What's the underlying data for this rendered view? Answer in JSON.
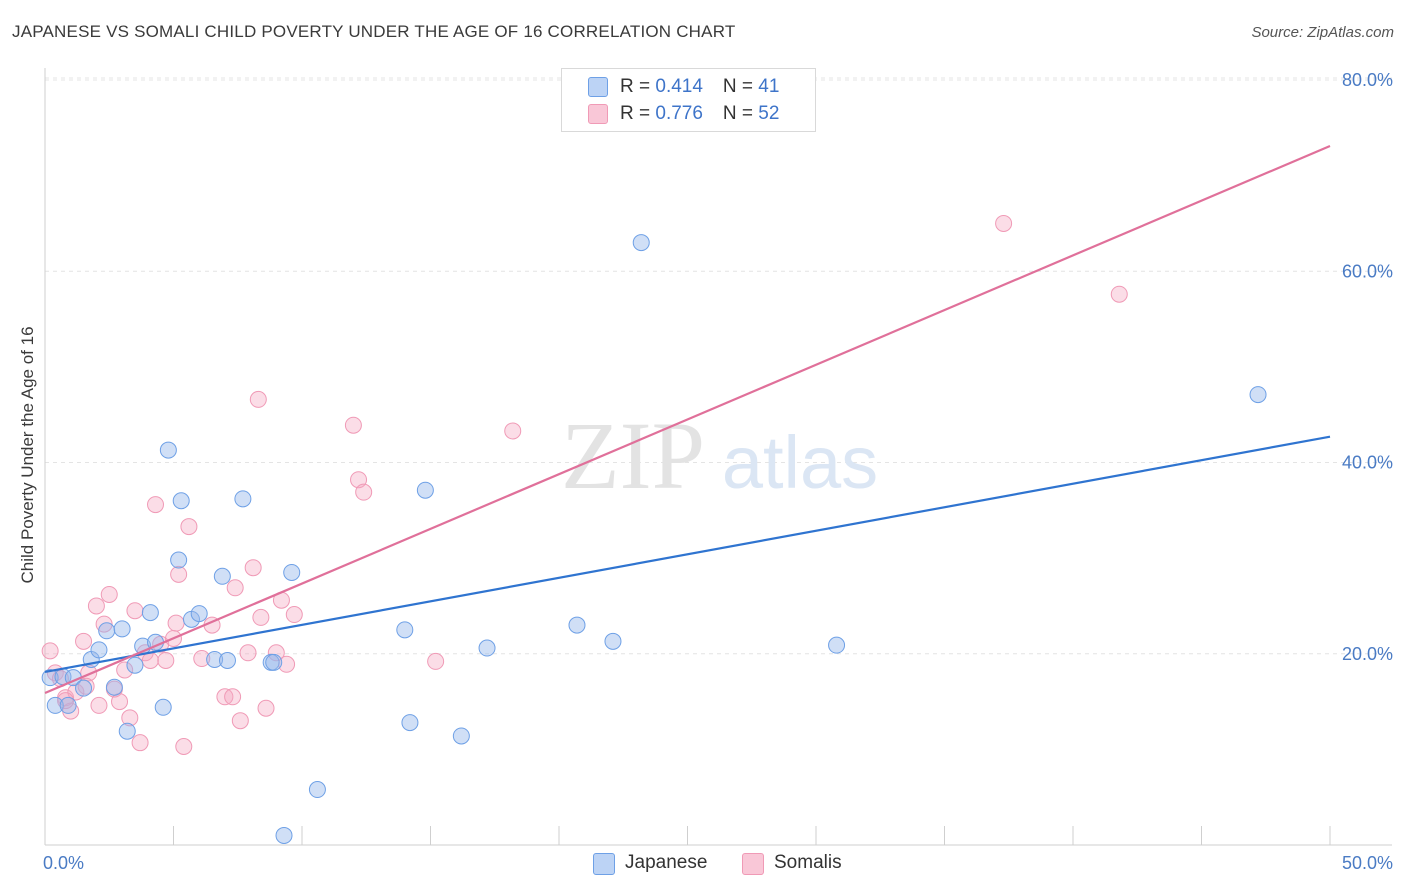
{
  "title": "JAPANESE VS SOMALI CHILD POVERTY UNDER THE AGE OF 16 CORRELATION CHART",
  "source": "Source: ZipAtlas.com",
  "watermark": {
    "zip": "ZIP",
    "atlas": "atlas"
  },
  "legend": {
    "japanese": {
      "r_label": "R = ",
      "r_value": "0.414",
      "n_label": "N = ",
      "n_value": "41"
    },
    "somalis": {
      "r_label": "R = ",
      "r_value": "0.776",
      "n_label": "N = ",
      "n_value": "52"
    }
  },
  "chart_data": {
    "type": "scatter",
    "title": "JAPANESE VS SOMALI CHILD POVERTY UNDER THE AGE OF 16 CORRELATION CHART",
    "xlabel": "",
    "ylabel": "Child Poverty Under the Age of 16",
    "xlim": [
      0,
      50
    ],
    "ylim": [
      0,
      80
    ],
    "x_tick_labels": [
      "0.0%",
      "50.0%"
    ],
    "y_ticks": [
      20,
      40,
      60,
      80
    ],
    "y_tick_labels": [
      "20.0%",
      "40.0%",
      "60.0%",
      "80.0%"
    ],
    "colors": {
      "japanese": "#6ea0e6",
      "somalis": "#f09ab6",
      "japanese_line": "#2f74d0",
      "somalis_line": "#e0709a"
    },
    "series": [
      {
        "name": "Japanese",
        "trend": {
          "x0": 0,
          "y0": 18.1,
          "x1": 50,
          "y1": 42.7
        },
        "points": [
          [
            0.2,
            17.5
          ],
          [
            0.4,
            14.6
          ],
          [
            0.7,
            17.6
          ],
          [
            0.9,
            14.6
          ],
          [
            1.1,
            17.5
          ],
          [
            1.5,
            16.4
          ],
          [
            1.8,
            19.4
          ],
          [
            2.1,
            20.4
          ],
          [
            2.4,
            22.4
          ],
          [
            2.7,
            16.5
          ],
          [
            3.0,
            22.6
          ],
          [
            3.2,
            11.9
          ],
          [
            3.5,
            18.8
          ],
          [
            3.8,
            20.8
          ],
          [
            4.1,
            24.3
          ],
          [
            4.3,
            21.2
          ],
          [
            4.6,
            14.4
          ],
          [
            4.8,
            41.3
          ],
          [
            5.2,
            29.8
          ],
          [
            5.3,
            36.0
          ],
          [
            5.7,
            23.6
          ],
          [
            6.0,
            24.2
          ],
          [
            6.6,
            19.4
          ],
          [
            6.9,
            28.1
          ],
          [
            7.1,
            19.3
          ],
          [
            7.7,
            36.2
          ],
          [
            8.8,
            19.1
          ],
          [
            8.9,
            19.1
          ],
          [
            9.6,
            28.5
          ],
          [
            9.3,
            1.0
          ],
          [
            10.6,
            5.8
          ],
          [
            14.0,
            22.5
          ],
          [
            14.2,
            12.8
          ],
          [
            14.8,
            37.1
          ],
          [
            16.2,
            11.4
          ],
          [
            17.2,
            20.6
          ],
          [
            20.7,
            23.0
          ],
          [
            22.1,
            21.3
          ],
          [
            23.2,
            63.0
          ],
          [
            30.8,
            20.9
          ],
          [
            47.2,
            47.1
          ]
        ]
      },
      {
        "name": "Somalis",
        "trend": {
          "x0": 0,
          "y0": 15.9,
          "x1": 50,
          "y1": 73.1
        },
        "points": [
          [
            0.2,
            20.3
          ],
          [
            0.4,
            18.0
          ],
          [
            0.6,
            17.4
          ],
          [
            0.8,
            15.4
          ],
          [
            1.0,
            14.0
          ],
          [
            1.2,
            16.0
          ],
          [
            1.5,
            21.3
          ],
          [
            1.7,
            18.0
          ],
          [
            2.0,
            25.0
          ],
          [
            2.1,
            14.6
          ],
          [
            2.3,
            23.1
          ],
          [
            2.5,
            26.2
          ],
          [
            2.7,
            16.3
          ],
          [
            2.9,
            15.0
          ],
          [
            3.1,
            18.3
          ],
          [
            3.3,
            13.3
          ],
          [
            3.5,
            24.5
          ],
          [
            3.7,
            10.7
          ],
          [
            3.9,
            20.1
          ],
          [
            4.1,
            19.3
          ],
          [
            4.3,
            35.6
          ],
          [
            4.5,
            21.0
          ],
          [
            4.7,
            19.3
          ],
          [
            5.0,
            21.6
          ],
          [
            5.1,
            23.2
          ],
          [
            5.2,
            28.3
          ],
          [
            5.4,
            10.3
          ],
          [
            5.6,
            33.3
          ],
          [
            6.1,
            19.5
          ],
          [
            6.5,
            23.0
          ],
          [
            7.0,
            15.5
          ],
          [
            7.3,
            15.5
          ],
          [
            7.4,
            26.9
          ],
          [
            7.6,
            13.0
          ],
          [
            7.9,
            20.1
          ],
          [
            8.1,
            29.0
          ],
          [
            8.3,
            46.6
          ],
          [
            8.4,
            23.8
          ],
          [
            8.6,
            14.3
          ],
          [
            9.0,
            20.1
          ],
          [
            9.2,
            25.6
          ],
          [
            9.4,
            18.9
          ],
          [
            9.7,
            24.1
          ],
          [
            12.0,
            43.9
          ],
          [
            12.2,
            38.2
          ],
          [
            12.4,
            36.9
          ],
          [
            15.2,
            19.2
          ],
          [
            18.2,
            43.3
          ],
          [
            37.3,
            65.0
          ],
          [
            41.8,
            57.6
          ],
          [
            0.8,
            15.1
          ],
          [
            1.6,
            16.6
          ]
        ]
      }
    ]
  }
}
